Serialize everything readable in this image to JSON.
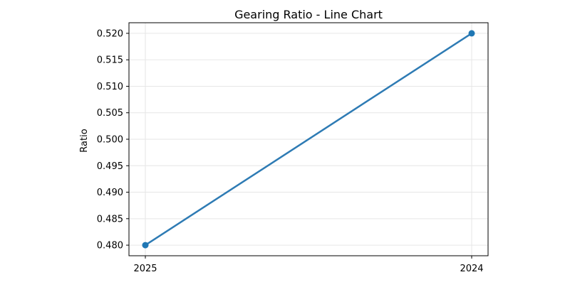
{
  "chart_data": {
    "type": "line",
    "title": "Gearing Ratio - Line Chart",
    "xlabel": "",
    "ylabel": "Ratio",
    "categories": [
      "2025",
      "2024"
    ],
    "series": [
      {
        "name": "",
        "values": [
          0.48,
          0.52
        ]
      }
    ],
    "ylim": [
      0.478,
      0.522
    ],
    "yticks": [
      0.48,
      0.485,
      0.49,
      0.495,
      0.5,
      0.505,
      0.51,
      0.515,
      0.52
    ],
    "ytick_labels": [
      "0.480",
      "0.485",
      "0.490",
      "0.495",
      "0.500",
      "0.505",
      "0.510",
      "0.515",
      "0.520"
    ],
    "grid": true,
    "line_color": "#2e7bb4",
    "marker_color": "#1f77b4"
  }
}
